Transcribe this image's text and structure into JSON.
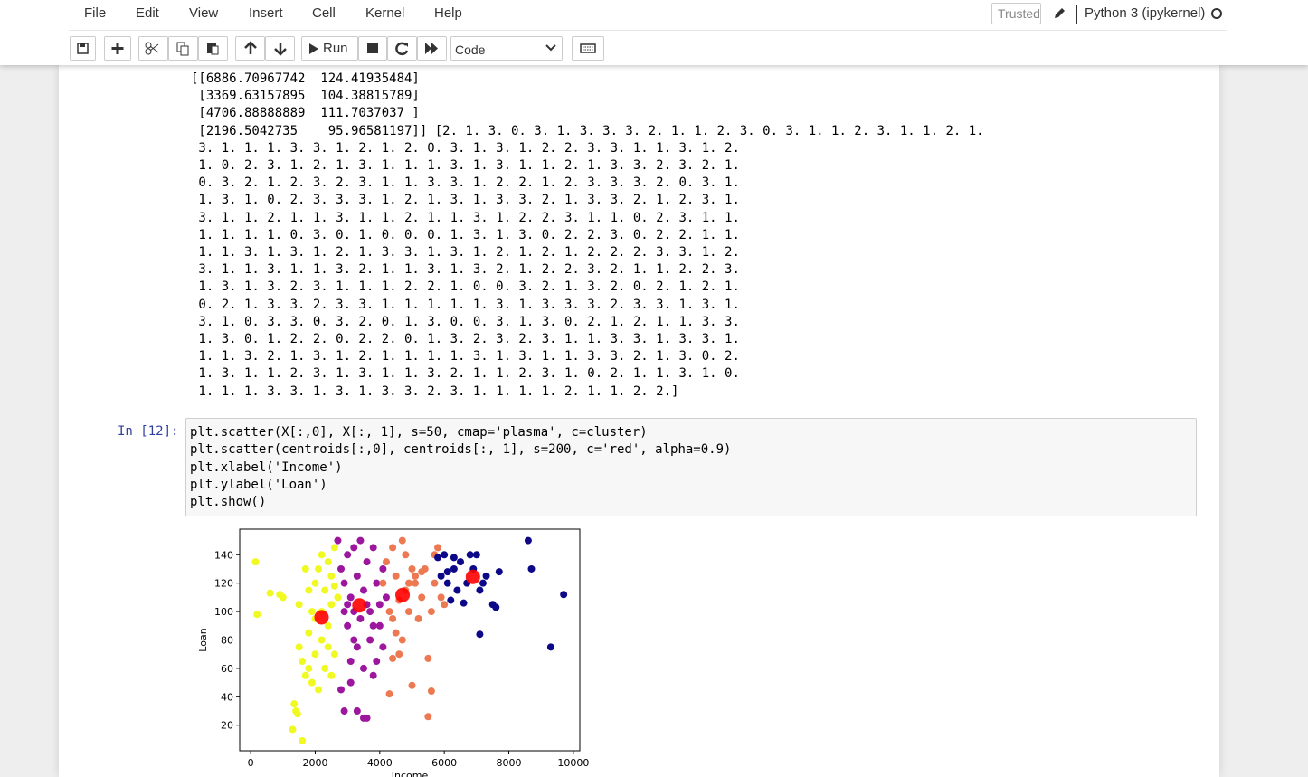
{
  "menu": [
    "File",
    "Edit",
    "View",
    "Insert",
    "Cell",
    "Kernel",
    "Help"
  ],
  "trusted": "Trusted",
  "kernel": "Python 3 (ipykernel)",
  "toolbar": {
    "run": "Run",
    "cell_type": "Code"
  },
  "output_lines": [
    "[[6886.70967742  124.41935484]",
    " [3369.63157895  104.38815789]",
    " [4706.88888889  111.7037037 ]",
    " [2196.5042735    95.96581197]] [2. 1. 3. 0. 3. 1. 3. 3. 3. 2. 1. 1. 2. 3. 0. 3. 1. 1. 2. 3. 1. 1. 2. 1.",
    " 3. 1. 1. 1. 3. 3. 1. 2. 1. 2. 0. 3. 1. 3. 1. 2. 2. 3. 3. 1. 1. 3. 1. 2.",
    " 1. 0. 2. 3. 1. 2. 1. 3. 1. 1. 1. 3. 1. 3. 1. 1. 2. 1. 3. 3. 2. 3. 2. 1.",
    " 0. 3. 2. 1. 2. 3. 2. 3. 1. 1. 3. 3. 1. 2. 2. 1. 2. 3. 3. 3. 2. 0. 3. 1.",
    " 1. 3. 1. 0. 2. 3. 3. 3. 1. 2. 1. 3. 1. 3. 3. 2. 1. 3. 3. 2. 1. 2. 3. 1.",
    " 3. 1. 1. 2. 1. 1. 3. 1. 1. 2. 1. 1. 3. 1. 2. 2. 3. 1. 1. 0. 2. 3. 1. 1.",
    " 1. 1. 1. 1. 0. 3. 0. 1. 0. 0. 0. 1. 3. 1. 3. 0. 2. 2. 3. 0. 2. 2. 1. 1.",
    " 1. 1. 3. 1. 3. 1. 2. 1. 3. 3. 1. 3. 1. 2. 1. 2. 1. 2. 2. 2. 3. 3. 1. 2.",
    " 3. 1. 1. 3. 1. 1. 3. 2. 1. 1. 3. 1. 3. 2. 1. 2. 2. 3. 2. 1. 1. 2. 2. 3.",
    " 1. 3. 1. 3. 2. 3. 1. 1. 1. 2. 2. 1. 0. 0. 3. 2. 1. 3. 2. 0. 2. 1. 2. 1.",
    " 0. 2. 1. 3. 3. 2. 3. 3. 1. 1. 1. 1. 1. 3. 1. 3. 3. 3. 2. 3. 3. 1. 3. 1.",
    " 3. 1. 0. 3. 3. 0. 3. 2. 0. 1. 3. 0. 0. 3. 1. 3. 0. 2. 1. 2. 1. 1. 3. 3.",
    " 1. 3. 0. 1. 2. 2. 0. 2. 2. 0. 1. 3. 2. 3. 2. 3. 1. 1. 3. 3. 1. 3. 3. 1.",
    " 1. 1. 3. 2. 1. 3. 1. 2. 1. 1. 1. 1. 3. 1. 3. 1. 1. 3. 3. 2. 1. 3. 0. 2.",
    " 1. 3. 1. 1. 2. 3. 1. 3. 1. 1. 3. 2. 1. 1. 2. 3. 1. 0. 2. 1. 1. 3. 1. 0.",
    " 1. 1. 1. 3. 3. 1. 3. 1. 3. 3. 2. 3. 1. 1. 1. 1. 2. 1. 1. 2. 2.]"
  ],
  "cell": {
    "prompt": "In [12]:",
    "code": [
      "plt.scatter(X[:,0], X[:, 1], s=50, cmap='plasma', c=cluster)",
      "plt.scatter(centroids[:,0], centroids[:, 1], s=200, c='red', alpha=0.9)",
      "plt.xlabel('Income')",
      "plt.ylabel('Loan')",
      "plt.show()"
    ]
  },
  "chart_data": {
    "type": "scatter",
    "xlabel": "Income",
    "ylabel": "Loan",
    "xlim": [
      -340,
      10200
    ],
    "ylim": [
      2,
      158
    ],
    "xticks": [
      0,
      2000,
      4000,
      6000,
      8000,
      10000
    ],
    "yticks": [
      20,
      40,
      60,
      80,
      100,
      120,
      140
    ],
    "series": [
      {
        "color": "#f0f921",
        "x": [
          150,
          200,
          600,
          900,
          1000,
          1300,
          1350,
          1400,
          1450,
          1600,
          1500,
          1600,
          1700,
          1800,
          1800,
          1900,
          1900,
          2000,
          2000,
          2100,
          2100,
          2200,
          2200,
          2300,
          2300,
          2400,
          2400,
          2500,
          2500,
          2600,
          2600,
          1700,
          1800,
          2000,
          2200,
          2400,
          2500,
          1500,
          2600,
          2700
        ],
        "y": [
          135,
          98,
          113,
          112,
          110,
          17,
          35,
          30,
          28,
          9,
          75,
          65,
          55,
          60,
          85,
          50,
          100,
          70,
          120,
          130,
          45,
          140,
          80,
          115,
          60,
          135,
          90,
          105,
          125,
          145,
          70,
          130,
          115,
          95,
          100,
          75,
          55,
          105,
          118,
          110
        ]
      },
      {
        "color": "#9c179e",
        "x": [
          2700,
          2800,
          2900,
          2900,
          3000,
          3000,
          3100,
          3100,
          3200,
          3200,
          3300,
          3300,
          3400,
          3400,
          3500,
          3500,
          3500,
          3600,
          3600,
          3700,
          3700,
          3800,
          3800,
          3900,
          3900,
          4000,
          4000,
          4100,
          4100,
          4200,
          2800,
          2900,
          3000,
          3200,
          3600,
          3800,
          3100,
          3300
        ],
        "y": [
          150,
          130,
          120,
          100,
          90,
          140,
          110,
          50,
          145,
          80,
          125,
          30,
          150,
          95,
          25,
          60,
          115,
          135,
          25,
          100,
          80,
          145,
          55,
          120,
          65,
          105,
          90,
          130,
          75,
          110,
          45,
          30,
          105,
          100,
          105,
          90,
          65,
          75
        ]
      },
      {
        "color": "#ed7953",
        "x": [
          4100,
          4200,
          4300,
          4300,
          4400,
          4400,
          4500,
          4500,
          4600,
          4700,
          4700,
          4800,
          4800,
          4900,
          5000,
          5000,
          5100,
          5200,
          5300,
          5400,
          5500,
          5500,
          5600,
          5600,
          5700,
          5800,
          5900,
          6000,
          4400,
          4900,
          5100,
          5300,
          5700,
          4600
        ],
        "y": [
          120,
          135,
          100,
          42,
          145,
          67,
          125,
          85,
          70,
          150,
          80,
          115,
          140,
          100,
          130,
          48,
          120,
          95,
          110,
          130,
          67,
          26,
          100,
          44,
          120,
          145,
          110,
          105,
          95,
          120,
          125,
          128,
          140,
          108
        ]
      },
      {
        "color": "#0d0887",
        "x": [
          5800,
          5900,
          6000,
          6100,
          6200,
          6300,
          6400,
          6500,
          6600,
          6700,
          6800,
          6900,
          7000,
          7100,
          7200,
          7300,
          7500,
          7600,
          7700,
          8600,
          8700,
          9300,
          9700,
          6100,
          6300,
          7100
        ],
        "y": [
          138,
          125,
          140,
          120,
          108,
          130,
          115,
          135,
          106,
          120,
          140,
          130,
          140,
          84,
          120,
          125,
          105,
          103,
          128,
          150,
          130,
          75,
          112,
          128,
          138,
          115
        ]
      }
    ],
    "centroids": {
      "color": "red",
      "x": [
        6886.70967742,
        3369.63157895,
        4706.88888889,
        2196.5042735
      ],
      "y": [
        124.41935484,
        104.38815789,
        111.7037037,
        95.96581197
      ]
    }
  }
}
